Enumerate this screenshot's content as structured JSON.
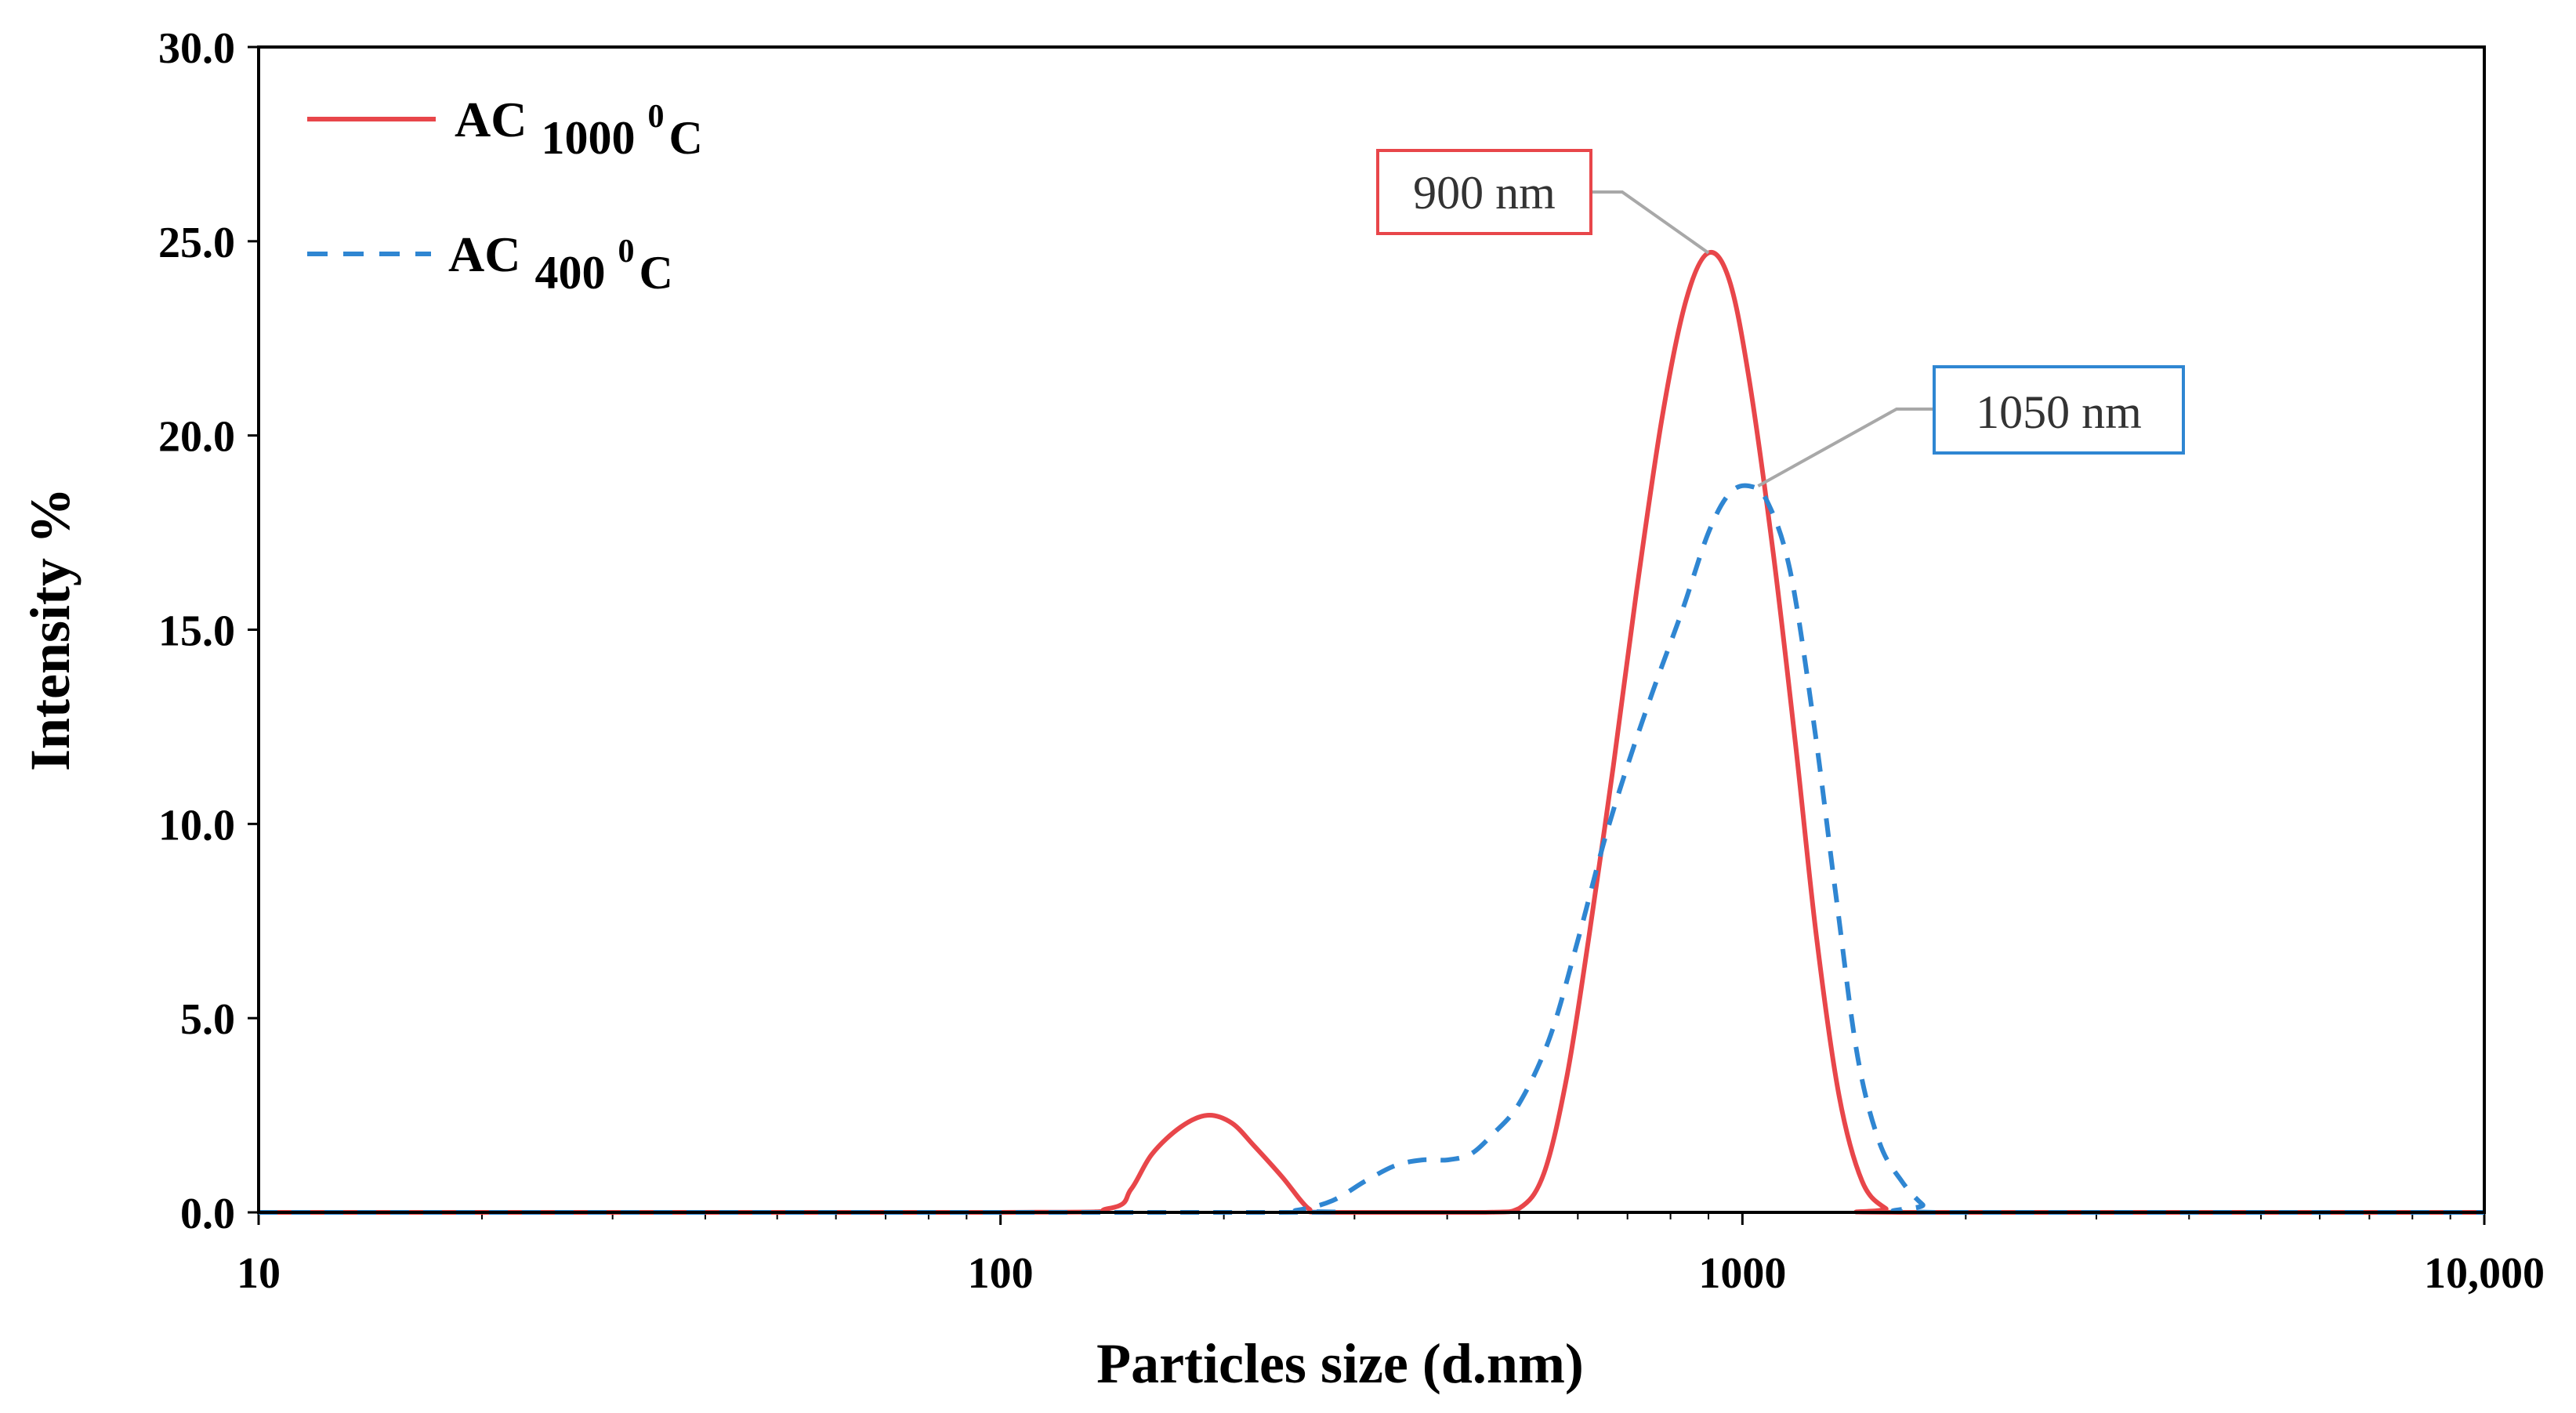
{
  "chart_data": {
    "type": "line",
    "title": "",
    "xlabel": "Particles size (d.nm)",
    "ylabel": "Intensity %",
    "xscale": "log",
    "xlim": [
      10,
      10000
    ],
    "ylim": [
      0,
      30
    ],
    "xticks": [
      {
        "value": 10,
        "label": "10"
      },
      {
        "value": 100,
        "label": "100"
      },
      {
        "value": 1000,
        "label": "1000"
      },
      {
        "value": 10000,
        "label": "10,000"
      }
    ],
    "yticks": [
      {
        "value": 0,
        "label": "0.0"
      },
      {
        "value": 5,
        "label": "5.0"
      },
      {
        "value": 10,
        "label": "10.0"
      },
      {
        "value": 15,
        "label": "15.0"
      },
      {
        "value": 20,
        "label": "20.0"
      },
      {
        "value": 25,
        "label": "25.0"
      },
      {
        "value": 30,
        "label": "30.0"
      }
    ],
    "grid": false,
    "legend_position": "top-left",
    "series": [
      {
        "name": "AC 1000 0C",
        "label_main": "AC",
        "label_sub": "1000",
        "label_sup": "0",
        "label_unit": "C",
        "color": "#e8464a",
        "style": "solid",
        "points": [
          [
            10,
            0
          ],
          [
            100,
            0
          ],
          [
            140,
            0.1
          ],
          [
            150,
            0.6
          ],
          [
            160,
            1.5
          ],
          [
            175,
            2.2
          ],
          [
            190,
            2.5
          ],
          [
            205,
            2.3
          ],
          [
            220,
            1.7
          ],
          [
            240,
            0.9
          ],
          [
            260,
            0.1
          ],
          [
            275,
            0
          ],
          [
            450,
            0
          ],
          [
            500,
            0.1
          ],
          [
            540,
            1.0
          ],
          [
            580,
            3.5
          ],
          [
            620,
            7.0
          ],
          [
            670,
            11.5
          ],
          [
            720,
            16.0
          ],
          [
            780,
            20.5
          ],
          [
            840,
            23.5
          ],
          [
            900,
            24.7
          ],
          [
            960,
            24.0
          ],
          [
            1020,
            21.5
          ],
          [
            1100,
            17.0
          ],
          [
            1180,
            12.0
          ],
          [
            1260,
            7.0
          ],
          [
            1350,
            3.0
          ],
          [
            1450,
            0.8
          ],
          [
            1560,
            0.1
          ],
          [
            1650,
            0
          ],
          [
            10000,
            0
          ]
        ]
      },
      {
        "name": "AC 400 0C",
        "label_main": "AC",
        "label_sub": "400",
        "label_sup": "0",
        "label_unit": "C",
        "color": "#2f86d2",
        "style": "dashed",
        "points": [
          [
            10,
            0
          ],
          [
            220,
            0
          ],
          [
            250,
            0.05
          ],
          [
            280,
            0.3
          ],
          [
            310,
            0.8
          ],
          [
            340,
            1.2
          ],
          [
            370,
            1.35
          ],
          [
            400,
            1.35
          ],
          [
            430,
            1.5
          ],
          [
            460,
            2.0
          ],
          [
            500,
            2.8
          ],
          [
            550,
            4.5
          ],
          [
            600,
            7.0
          ],
          [
            650,
            9.5
          ],
          [
            700,
            11.5
          ],
          [
            760,
            13.5
          ],
          [
            830,
            15.5
          ],
          [
            900,
            17.5
          ],
          [
            960,
            18.5
          ],
          [
            1020,
            18.7
          ],
          [
            1080,
            18.3
          ],
          [
            1160,
            16.5
          ],
          [
            1250,
            12.5
          ],
          [
            1340,
            8.0
          ],
          [
            1430,
            4.0
          ],
          [
            1530,
            1.8
          ],
          [
            1640,
            0.8
          ],
          [
            1750,
            0.2
          ],
          [
            1830,
            0
          ],
          [
            10000,
            0
          ]
        ]
      }
    ],
    "annotations": [
      {
        "text": "900 nm",
        "x": 900,
        "y": 24.7,
        "series": 0
      },
      {
        "text": "1050 nm",
        "x": 1050,
        "y": 18.7,
        "series": 1
      }
    ]
  }
}
